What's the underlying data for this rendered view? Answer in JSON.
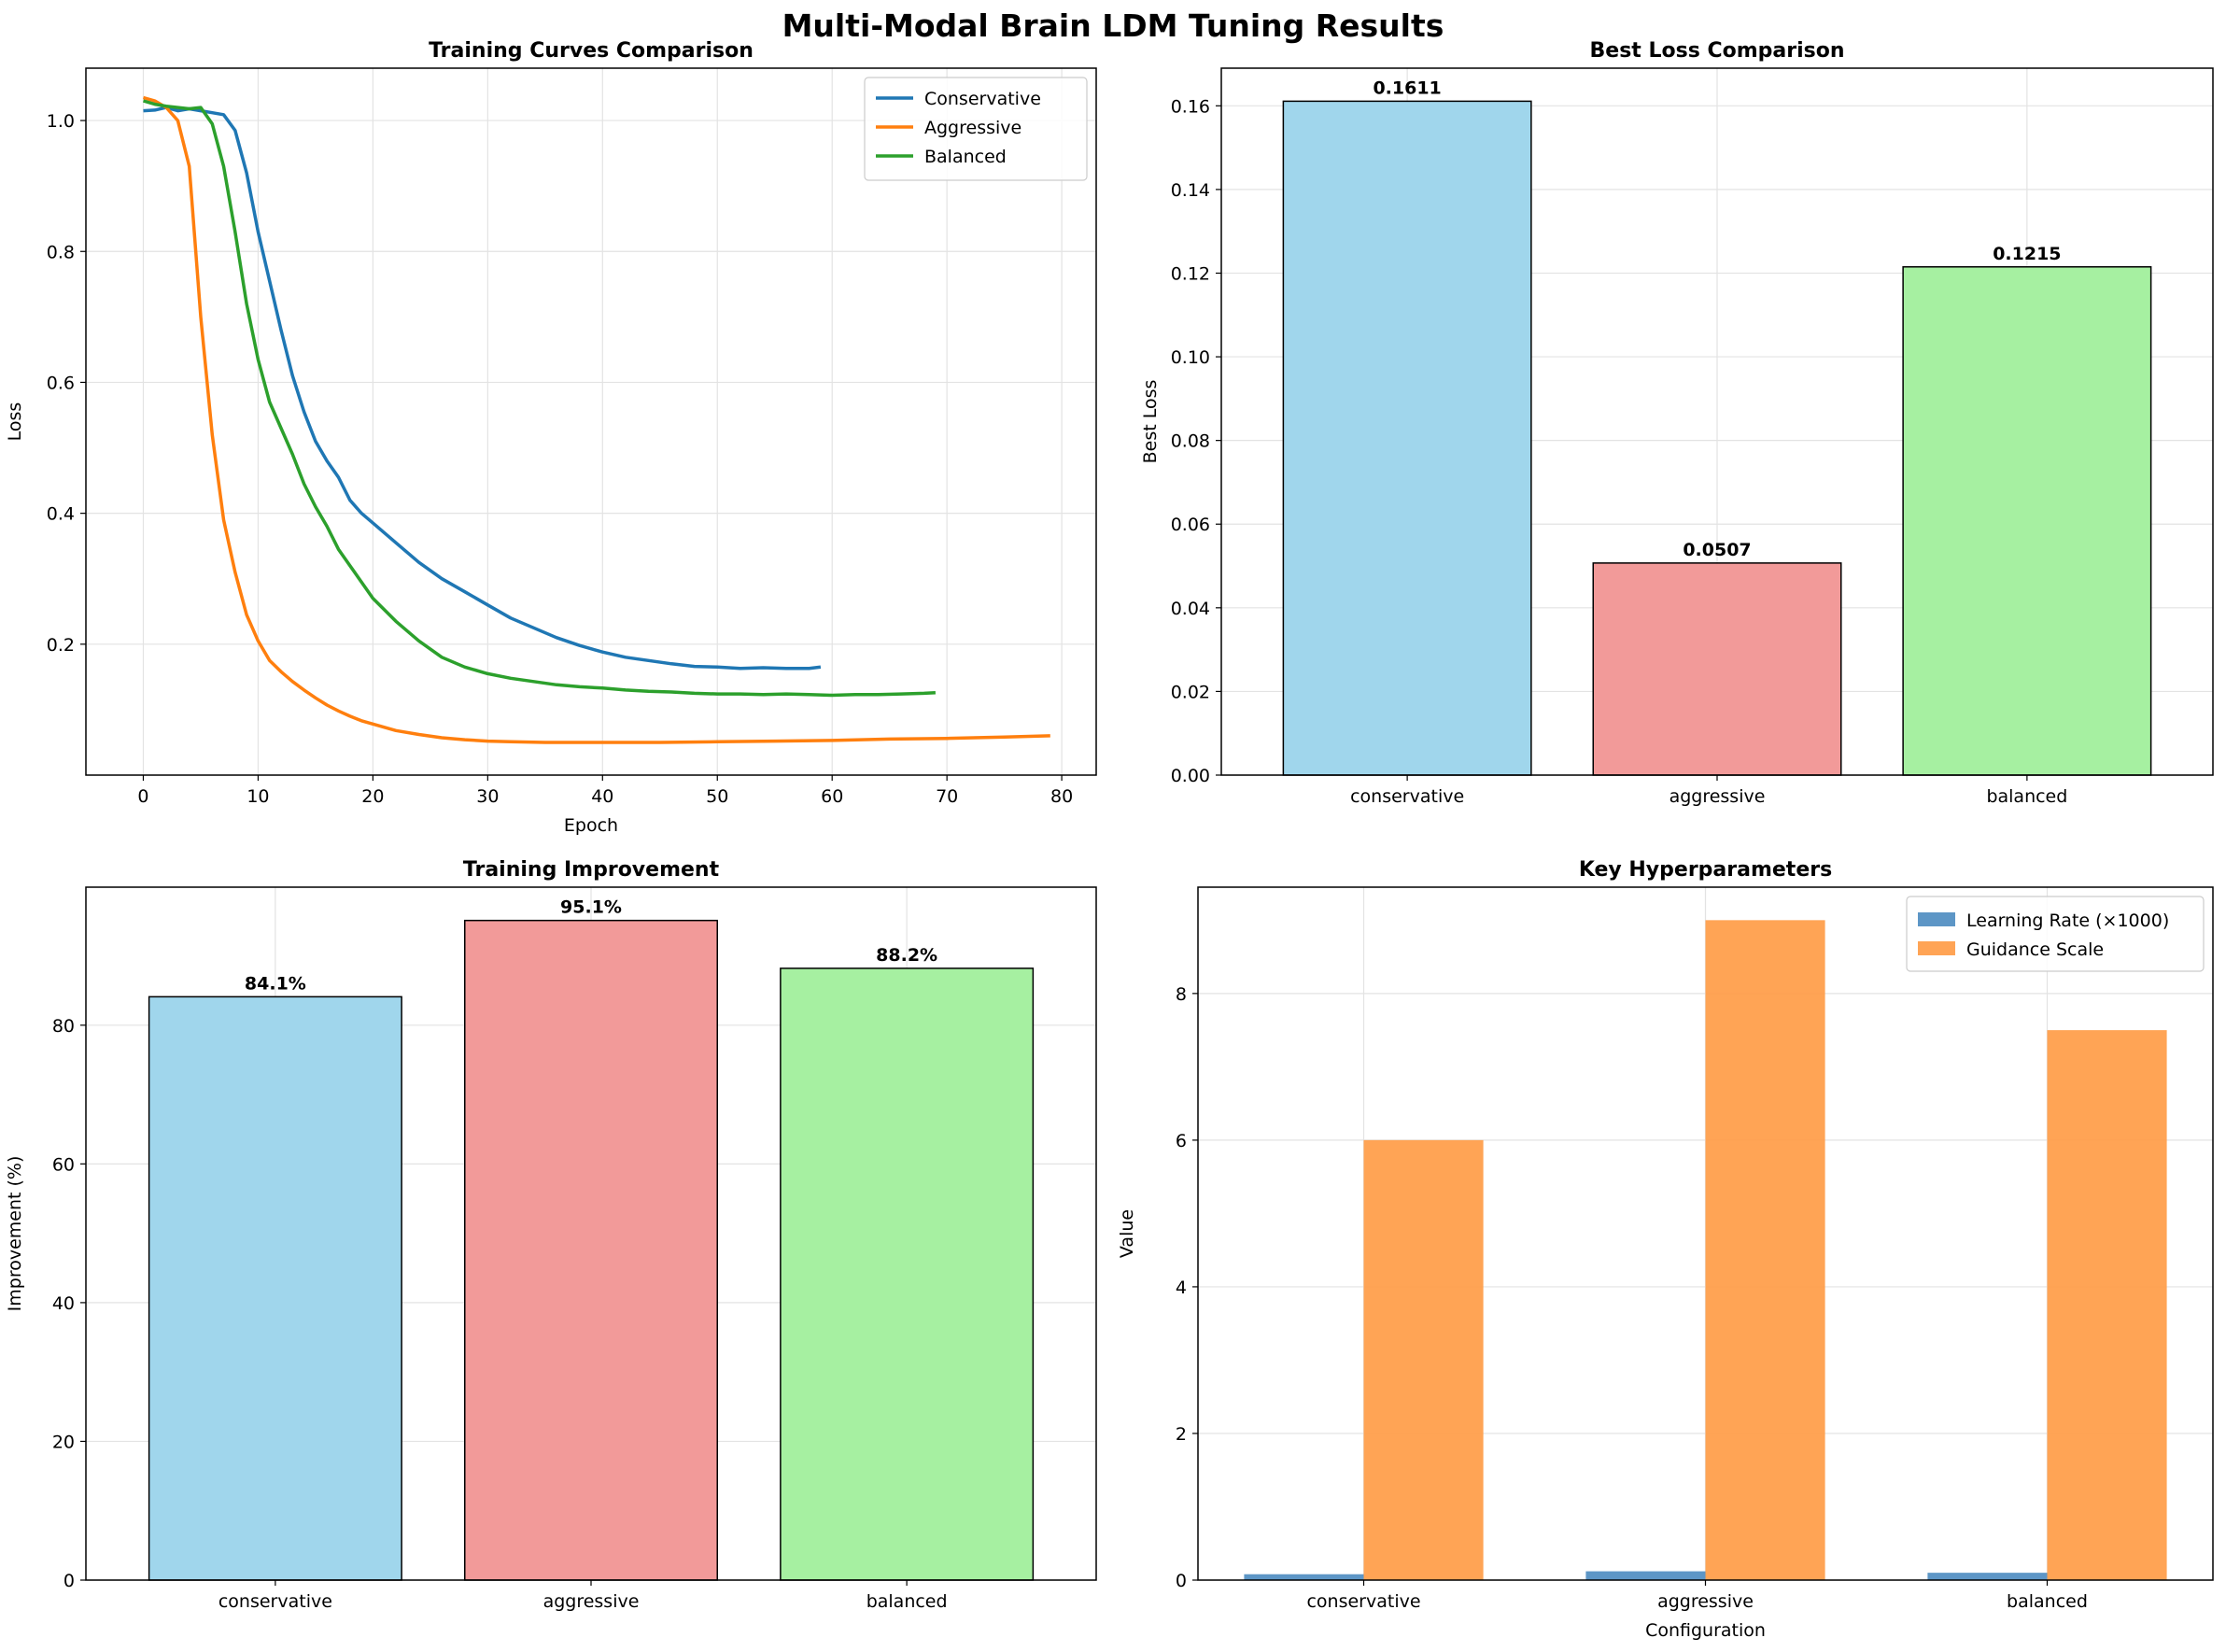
{
  "suptitle": "Multi-Modal Brain LDM Tuning Results",
  "chart_data": [
    {
      "type": "line",
      "title": "Training Curves Comparison",
      "xlabel": "Epoch",
      "ylabel": "Loss",
      "xlim": [
        -5,
        83
      ],
      "ylim": [
        0.0,
        1.08
      ],
      "xticks": [
        0,
        10,
        20,
        30,
        40,
        50,
        60,
        70,
        80
      ],
      "yticks": [
        0.2,
        0.4,
        0.6,
        0.8,
        1.0
      ],
      "grid": true,
      "legend": "top-right",
      "series": [
        {
          "name": "Conservative",
          "color": "#1f77b4",
          "x": [
            0,
            1,
            2,
            3,
            4,
            5,
            6,
            7,
            8,
            9,
            10,
            11,
            12,
            13,
            14,
            15,
            16,
            17,
            18,
            19,
            20,
            22,
            24,
            26,
            28,
            30,
            32,
            34,
            36,
            38,
            40,
            42,
            44,
            46,
            48,
            50,
            52,
            54,
            56,
            58,
            59
          ],
          "y": [
            1.015,
            1.016,
            1.02,
            1.015,
            1.018,
            1.015,
            1.012,
            1.009,
            0.985,
            0.92,
            0.83,
            0.755,
            0.68,
            0.61,
            0.555,
            0.51,
            0.48,
            0.455,
            0.42,
            0.4,
            0.385,
            0.355,
            0.325,
            0.3,
            0.28,
            0.26,
            0.24,
            0.225,
            0.21,
            0.198,
            0.188,
            0.18,
            0.175,
            0.17,
            0.166,
            0.165,
            0.163,
            0.164,
            0.163,
            0.163,
            0.165
          ]
        },
        {
          "name": "Aggressive",
          "color": "#ff7f0e",
          "x": [
            0,
            1,
            2,
            3,
            4,
            5,
            6,
            7,
            8,
            9,
            10,
            11,
            12,
            13,
            14,
            15,
            16,
            17,
            18,
            19,
            20,
            22,
            24,
            26,
            28,
            30,
            32,
            35,
            40,
            45,
            50,
            55,
            60,
            65,
            70,
            75,
            79
          ],
          "y": [
            1.035,
            1.03,
            1.02,
            1.0,
            0.93,
            0.7,
            0.52,
            0.39,
            0.31,
            0.245,
            0.205,
            0.175,
            0.158,
            0.143,
            0.13,
            0.118,
            0.107,
            0.098,
            0.09,
            0.083,
            0.078,
            0.068,
            0.062,
            0.057,
            0.054,
            0.052,
            0.051,
            0.05,
            0.05,
            0.05,
            0.051,
            0.052,
            0.053,
            0.055,
            0.056,
            0.058,
            0.06
          ]
        },
        {
          "name": "Balanced",
          "color": "#2ca02c",
          "x": [
            0,
            1,
            2,
            3,
            4,
            5,
            6,
            7,
            8,
            9,
            10,
            11,
            12,
            13,
            14,
            15,
            16,
            17,
            18,
            19,
            20,
            22,
            24,
            26,
            28,
            30,
            32,
            34,
            36,
            38,
            40,
            42,
            44,
            46,
            48,
            50,
            52,
            54,
            56,
            58,
            60,
            62,
            64,
            66,
            68,
            69
          ],
          "y": [
            1.03,
            1.025,
            1.022,
            1.02,
            1.018,
            1.02,
            0.995,
            0.93,
            0.83,
            0.72,
            0.635,
            0.57,
            0.53,
            0.49,
            0.445,
            0.41,
            0.38,
            0.345,
            0.32,
            0.295,
            0.27,
            0.235,
            0.205,
            0.18,
            0.165,
            0.155,
            0.148,
            0.143,
            0.138,
            0.135,
            0.133,
            0.13,
            0.128,
            0.127,
            0.125,
            0.124,
            0.124,
            0.123,
            0.124,
            0.123,
            0.122,
            0.123,
            0.123,
            0.124,
            0.125,
            0.126
          ]
        }
      ]
    },
    {
      "type": "bar",
      "title": "Best Loss Comparison",
      "xlabel": "",
      "ylabel": "Best Loss",
      "categories": [
        "conservative",
        "aggressive",
        "balanced"
      ],
      "values": [
        0.1611,
        0.0507,
        0.1215
      ],
      "value_labels": [
        "0.1611",
        "0.0507",
        "0.1215"
      ],
      "colors": [
        "#a0d6ec",
        "#f29a99",
        "#a6f0a1"
      ],
      "ylim": [
        0,
        0.169
      ],
      "yticks": [
        "0.00",
        "0.02",
        "0.04",
        "0.06",
        "0.08",
        "0.10",
        "0.12",
        "0.14",
        "0.16"
      ],
      "grid": true
    },
    {
      "type": "bar",
      "title": "Training Improvement",
      "xlabel": "",
      "ylabel": "Improvement (%)",
      "categories": [
        "conservative",
        "aggressive",
        "balanced"
      ],
      "values": [
        84.1,
        95.1,
        88.2
      ],
      "value_labels": [
        "84.1%",
        "95.1%",
        "88.2%"
      ],
      "colors": [
        "#a0d6ec",
        "#f29a99",
        "#a6f0a1"
      ],
      "ylim": [
        0,
        99.9
      ],
      "yticks": [
        "0",
        "20",
        "40",
        "60",
        "80"
      ],
      "grid": true
    },
    {
      "type": "bar",
      "title": "Key Hyperparameters",
      "xlabel": "Configuration",
      "ylabel": "Value",
      "categories": [
        "conservative",
        "aggressive",
        "balanced"
      ],
      "series": [
        {
          "name": "Learning Rate (×1000)",
          "values": [
            0.08,
            0.12,
            0.1
          ],
          "color": "#4b8bc0"
        },
        {
          "name": "Guidance Scale",
          "values": [
            6.0,
            9.0,
            7.5
          ],
          "color": "#ff9a42"
        }
      ],
      "ylim": [
        0,
        9.45
      ],
      "yticks": [
        "0",
        "2",
        "4",
        "6",
        "8"
      ],
      "grid": true,
      "legend": "top-right"
    }
  ]
}
